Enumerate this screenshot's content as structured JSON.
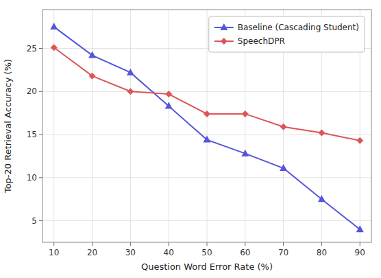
{
  "chart_data": {
    "type": "line",
    "x": [
      10,
      20,
      30,
      40,
      50,
      60,
      70,
      80,
      90
    ],
    "series": [
      {
        "name": "Baseline (Cascading Student)",
        "color": "#5555dd",
        "marker": "triangle",
        "values": [
          27.5,
          24.2,
          22.2,
          18.3,
          14.4,
          12.8,
          11.1,
          7.5,
          4.0
        ]
      },
      {
        "name": "SpeechDPR",
        "color": "#dd5555",
        "marker": "diamond",
        "values": [
          25.1,
          21.8,
          20.0,
          19.7,
          17.4,
          17.4,
          15.9,
          15.2,
          14.3
        ]
      }
    ],
    "xlabel": "Question Word Error Rate (%)",
    "ylabel": "Top-20 Retrieval Accuracy (%)",
    "xlim": [
      7,
      93
    ],
    "ylim": [
      2.5,
      29.5
    ],
    "xticks": [
      10,
      20,
      30,
      40,
      50,
      60,
      70,
      80,
      90
    ],
    "yticks": [
      5,
      10,
      15,
      20,
      25
    ],
    "grid": true,
    "legend": "upper right"
  }
}
